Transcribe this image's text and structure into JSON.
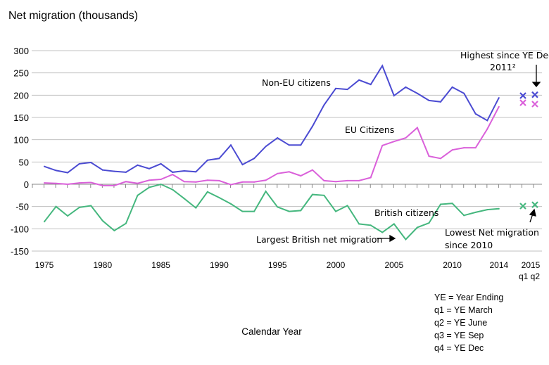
{
  "chart_data": {
    "type": "line",
    "title": "Net migration (thousands)",
    "xlabel": "Calendar Year",
    "ylim": [
      -150,
      300
    ],
    "yticks": [
      300,
      250,
      200,
      150,
      100,
      50,
      0,
      -50,
      -100,
      -150
    ],
    "xticks": [
      "1975",
      "1980",
      "1985",
      "1990",
      "1995",
      "2000",
      "2005",
      "2010",
      "2014"
    ],
    "quarter_label_year": "2015",
    "quarter_labels": "q1 q2",
    "grid": true,
    "x": [
      1975,
      1976,
      1977,
      1978,
      1979,
      1980,
      1981,
      1982,
      1983,
      1984,
      1985,
      1986,
      1987,
      1988,
      1989,
      1990,
      1991,
      1992,
      1993,
      1994,
      1995,
      1996,
      1997,
      1998,
      1999,
      2000,
      2001,
      2002,
      2003,
      2004,
      2005,
      2006,
      2007,
      2008,
      2009,
      2010,
      2011,
      2012,
      2013,
      2014
    ],
    "quarters": [
      "2015 q1",
      "2015 q2"
    ],
    "series": [
      {
        "name": "Non-EU citizens",
        "color": "#4B4BD2",
        "values": [
          40,
          31,
          26,
          46,
          49,
          32,
          29,
          27,
          43,
          35,
          46,
          27,
          30,
          28,
          54,
          58,
          88,
          44,
          58,
          85,
          104,
          88,
          88,
          130,
          178,
          215,
          213,
          234,
          224,
          266,
          199,
          218,
          204,
          188,
          185,
          218,
          204,
          158,
          143,
          194
        ],
        "quarter_values": [
          199,
          201
        ]
      },
      {
        "name": "EU Citizens",
        "color": "#DA60DA",
        "values": [
          3,
          2,
          0,
          3,
          4,
          -3,
          -3,
          6,
          2,
          9,
          11,
          22,
          6,
          5,
          9,
          8,
          -1,
          5,
          5,
          9,
          24,
          28,
          19,
          32,
          8,
          6,
          8,
          8,
          15,
          87,
          96,
          104,
          127,
          63,
          58,
          77,
          82,
          82,
          124,
          174
        ],
        "quarter_values": [
          183,
          180
        ]
      },
      {
        "name": "British citizens",
        "color": "#45B77E",
        "values": [
          -84,
          -50,
          -71,
          -52,
          -48,
          -82,
          -104,
          -88,
          -25,
          -7,
          0,
          -12,
          -32,
          -53,
          -17,
          -30,
          -44,
          -61,
          -61,
          -16,
          -51,
          -61,
          -59,
          -23,
          -25,
          -61,
          -48,
          -89,
          -92,
          -108,
          -89,
          -124,
          -97,
          -87,
          -45,
          -43,
          -70,
          -63,
          -57,
          -55
        ],
        "quarter_values": [
          -49,
          -46
        ]
      }
    ],
    "annotations": {
      "highest": "Highest since YE Dec",
      "highest_line2": "2011²",
      "largest_british": "Largest British net migration",
      "lowest": "Lowest Net migration",
      "lowest_line2": "since 2010"
    },
    "legend_notes": [
      "YE = Year Ending",
      "q1 = YE March",
      "q2 =  YE June",
      "q3 = YE Sep",
      "q4 = YE Dec"
    ]
  }
}
